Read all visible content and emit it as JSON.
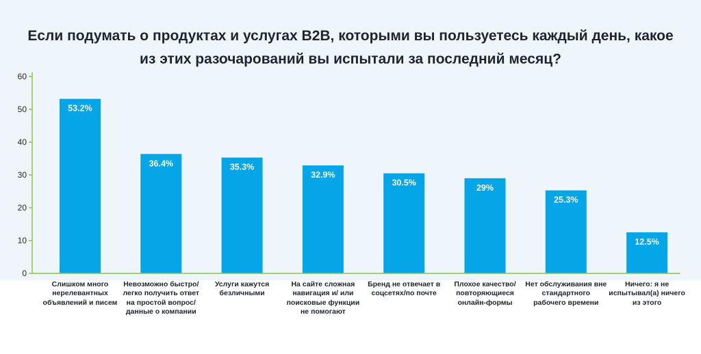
{
  "chart_data": {
    "type": "bar",
    "title": "Если подумать о продуктах и услугах B2B, которыми вы пользуетесь каждый день, какое из этих разочарований вы испытали за последний месяц?",
    "categories": [
      "Слишком много нерелевантных объявлений и писем",
      "Невозможно быстро/легко получить ответ на простой вопрос/данные о компании",
      "Услуги кажутся безличными",
      "На сайте сложная навигация и/ или поисковые функции не помогают",
      "Бренд не отвечает в соцсетях/по почте",
      "Плохое качество/ повторяющиеся онлайн-формы",
      "Нет обслуживания вне стандартного рабочего времени",
      "Ничего: я не испытывал(а) ничего из этого"
    ],
    "values": [
      53.2,
      36.4,
      35.3,
      32.9,
      30.5,
      29,
      25.3,
      12.5
    ],
    "data_labels": [
      "53.2%",
      "36.4%",
      "35.3%",
      "32.9%",
      "30.5%",
      "29%",
      "25.3%",
      "12.5%"
    ],
    "yticks": [
      0,
      10,
      20,
      30,
      40,
      50,
      60
    ],
    "ylim": [
      0,
      60
    ],
    "xlabel": "",
    "ylabel": "",
    "colors": {
      "bar": "#04a6e8",
      "axis": "#8cc63f",
      "label": "#ffffff",
      "text": "#1f2430"
    }
  }
}
